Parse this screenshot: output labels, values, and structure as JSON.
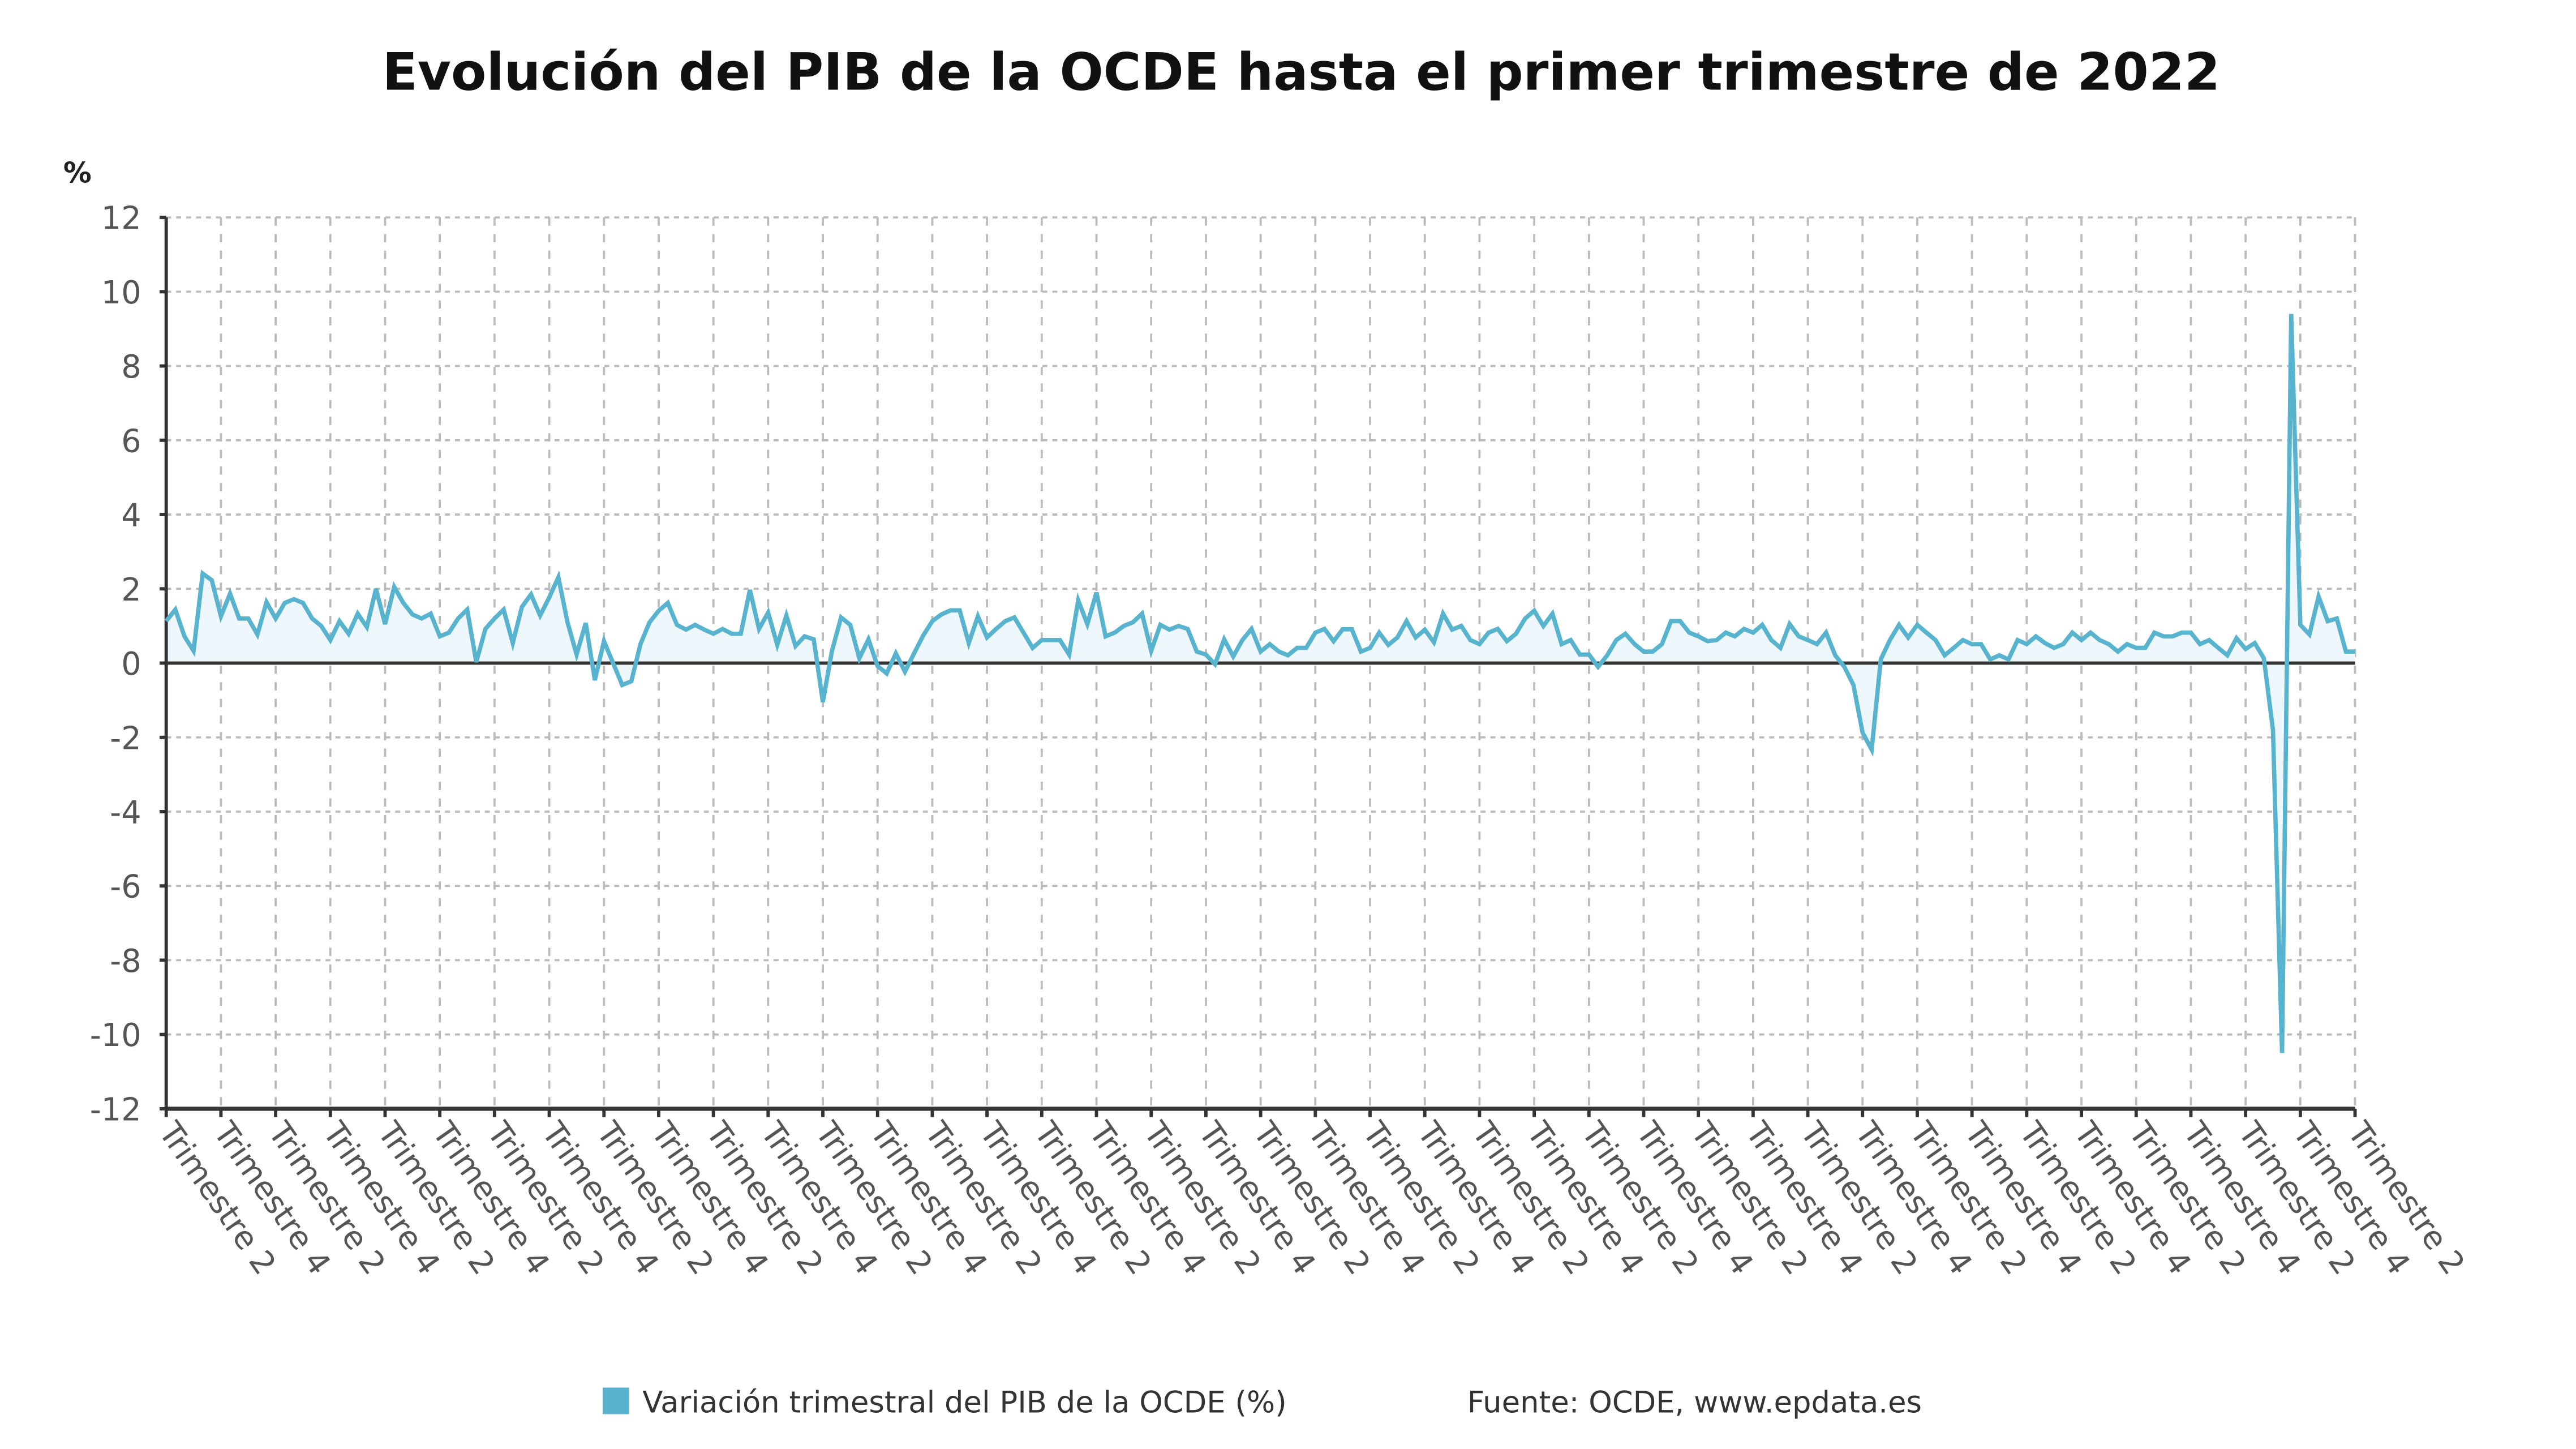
{
  "chart_data": {
    "type": "area",
    "title": "Evolución del PIB de la OCDE hasta el primer trimestre de 2022",
    "ylabel": "%",
    "xlabel": "",
    "ylim": [
      -12,
      12
    ],
    "yticks": [
      12,
      10,
      8,
      6,
      4,
      2,
      0,
      -2,
      -4,
      -6,
      -8,
      -10,
      -12
    ],
    "grid": true,
    "legend_position": "bottom",
    "quarters_per_tick": 6,
    "x_tick_labels": [
      "Trimestre 2",
      "Trimestre 4",
      "Trimestre 2",
      "Trimestre 4",
      "Trimestre 2",
      "Trimestre 4",
      "Trimestre 2",
      "Trimestre 4",
      "Trimestre 2",
      "Trimestre 4",
      "Trimestre 2",
      "Trimestre 4",
      "Trimestre 2",
      "Trimestre 4",
      "Trimestre 2",
      "Trimestre 4",
      "Trimestre 2",
      "Trimestre 4",
      "Trimestre 2",
      "Trimestre 4",
      "Trimestre 2",
      "Trimestre 4",
      "Trimestre 2",
      "Trimestre 4",
      "Trimestre 2",
      "Trimestre 4",
      "Trimestre 2",
      "Trimestre 4",
      "Trimestre 2",
      "Trimestre 4",
      "Trimestre 2",
      "Trimestre 4",
      "Trimestre 2",
      "Trimestre 4",
      "Trimestre 2",
      "Trimestre 4",
      "Trimestre 2",
      "Trimestre 4",
      "Trimestre 2",
      "Trimestre 4",
      "Trimestre 2"
    ],
    "series": [
      {
        "name": "Variación trimestral del PIB de la OCDE (%)",
        "color": "#58b3cf",
        "values": [
          1.13,
          1.44,
          0.72,
          0.33,
          2.41,
          2.23,
          1.26,
          1.87,
          1.2,
          1.2,
          0.77,
          1.64,
          1.2,
          1.62,
          1.72,
          1.62,
          1.2,
          1.0,
          0.62,
          1.13,
          0.79,
          1.33,
          0.97,
          2.0,
          1.05,
          2.05,
          1.62,
          1.31,
          1.2,
          1.33,
          0.72,
          0.82,
          1.2,
          1.44,
          0.03,
          0.92,
          1.2,
          1.44,
          0.54,
          1.51,
          1.85,
          1.28,
          1.77,
          2.31,
          1.1,
          0.23,
          1.08,
          -0.46,
          0.59,
          0.0,
          -0.59,
          -0.49,
          0.51,
          1.1,
          1.41,
          1.62,
          1.03,
          0.9,
          1.03,
          0.9,
          0.79,
          0.92,
          0.79,
          0.79,
          1.97,
          0.92,
          1.36,
          0.49,
          1.28,
          0.46,
          0.72,
          0.64,
          -1.05,
          0.33,
          1.23,
          1.03,
          0.13,
          0.64,
          -0.08,
          -0.28,
          0.26,
          -0.23,
          0.26,
          0.74,
          1.13,
          1.31,
          1.42,
          1.42,
          0.54,
          1.26,
          0.69,
          0.92,
          1.13,
          1.23,
          0.82,
          0.41,
          0.62,
          0.62,
          0.62,
          0.23,
          1.69,
          1.05,
          1.9,
          0.72,
          0.82,
          1.0,
          1.1,
          1.33,
          0.33,
          1.03,
          0.9,
          1.0,
          0.92,
          0.31,
          0.23,
          -0.03,
          0.64,
          0.18,
          0.62,
          0.92,
          0.31,
          0.51,
          0.31,
          0.21,
          0.41,
          0.41,
          0.82,
          0.92,
          0.59,
          0.91,
          0.91,
          0.31,
          0.41,
          0.82,
          0.49,
          0.69,
          1.13,
          0.69,
          0.9,
          0.56,
          1.33,
          0.9,
          1.0,
          0.62,
          0.51,
          0.82,
          0.92,
          0.59,
          0.79,
          1.2,
          1.41,
          1.0,
          1.33,
          0.51,
          0.62,
          0.23,
          0.23,
          -0.1,
          0.21,
          0.62,
          0.79,
          0.51,
          0.31,
          0.31,
          0.51,
          1.13,
          1.13,
          0.82,
          0.72,
          0.59,
          0.62,
          0.82,
          0.72,
          0.92,
          0.82,
          1.03,
          0.62,
          0.41,
          1.05,
          0.72,
          0.62,
          0.51,
          0.82,
          0.21,
          -0.1,
          -0.59,
          -1.87,
          -2.33,
          0.1,
          0.62,
          1.03,
          0.69,
          1.03,
          0.82,
          0.62,
          0.21,
          0.41,
          0.62,
          0.51,
          0.51,
          0.1,
          0.21,
          0.1,
          0.62,
          0.51,
          0.72,
          0.54,
          0.41,
          0.51,
          0.82,
          0.62,
          0.82,
          0.62,
          0.51,
          0.31,
          0.51,
          0.41,
          0.41,
          0.82,
          0.72,
          0.72,
          0.82,
          0.82,
          0.51,
          0.62,
          0.41,
          0.21,
          0.67,
          0.38,
          0.54,
          0.13,
          -1.8,
          -10.5,
          9.4,
          1.03,
          0.77,
          1.79,
          1.13,
          1.2,
          0.31,
          0.31
        ]
      }
    ]
  },
  "legend": {
    "label": "Variación trimestral del PIB de la OCDE (%)",
    "source": "Fuente: OCDE, www.epdata.es"
  },
  "colors": {
    "line": "#58b3cf",
    "fill": "#eef8fc",
    "axis": "#333333",
    "grid": "#bbbbbb"
  }
}
